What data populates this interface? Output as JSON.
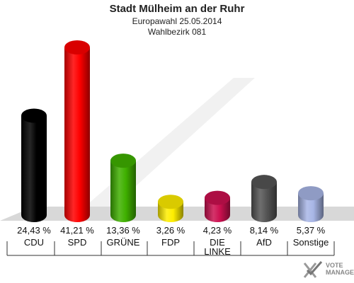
{
  "chart_data": {
    "type": "bar",
    "title": "Stadt Mülheim an der Ruhr",
    "subtitle": "Europawahl 25.05.2014",
    "subtitle2": "Wahlbezirk 081",
    "categories": [
      "CDU",
      "SPD",
      "GRÜNE",
      "FDP",
      "DIE LINKE",
      "AfD",
      "Sonstige"
    ],
    "values": [
      24.43,
      41.21,
      13.36,
      3.26,
      4.23,
      8.14,
      5.37
    ],
    "value_labels": [
      "24,43 %",
      "41,21 %",
      "13,36 %",
      "3,26 %",
      "4,23 %",
      "8,14 %",
      "5,37 %"
    ],
    "colors": [
      "#000000",
      "#ff0000",
      "#3fb000",
      "#ffee00",
      "#cc1050",
      "#555555",
      "#a8b6e6"
    ]
  },
  "logo": {
    "line1": "VOTE",
    "line2": "MANAGER"
  }
}
